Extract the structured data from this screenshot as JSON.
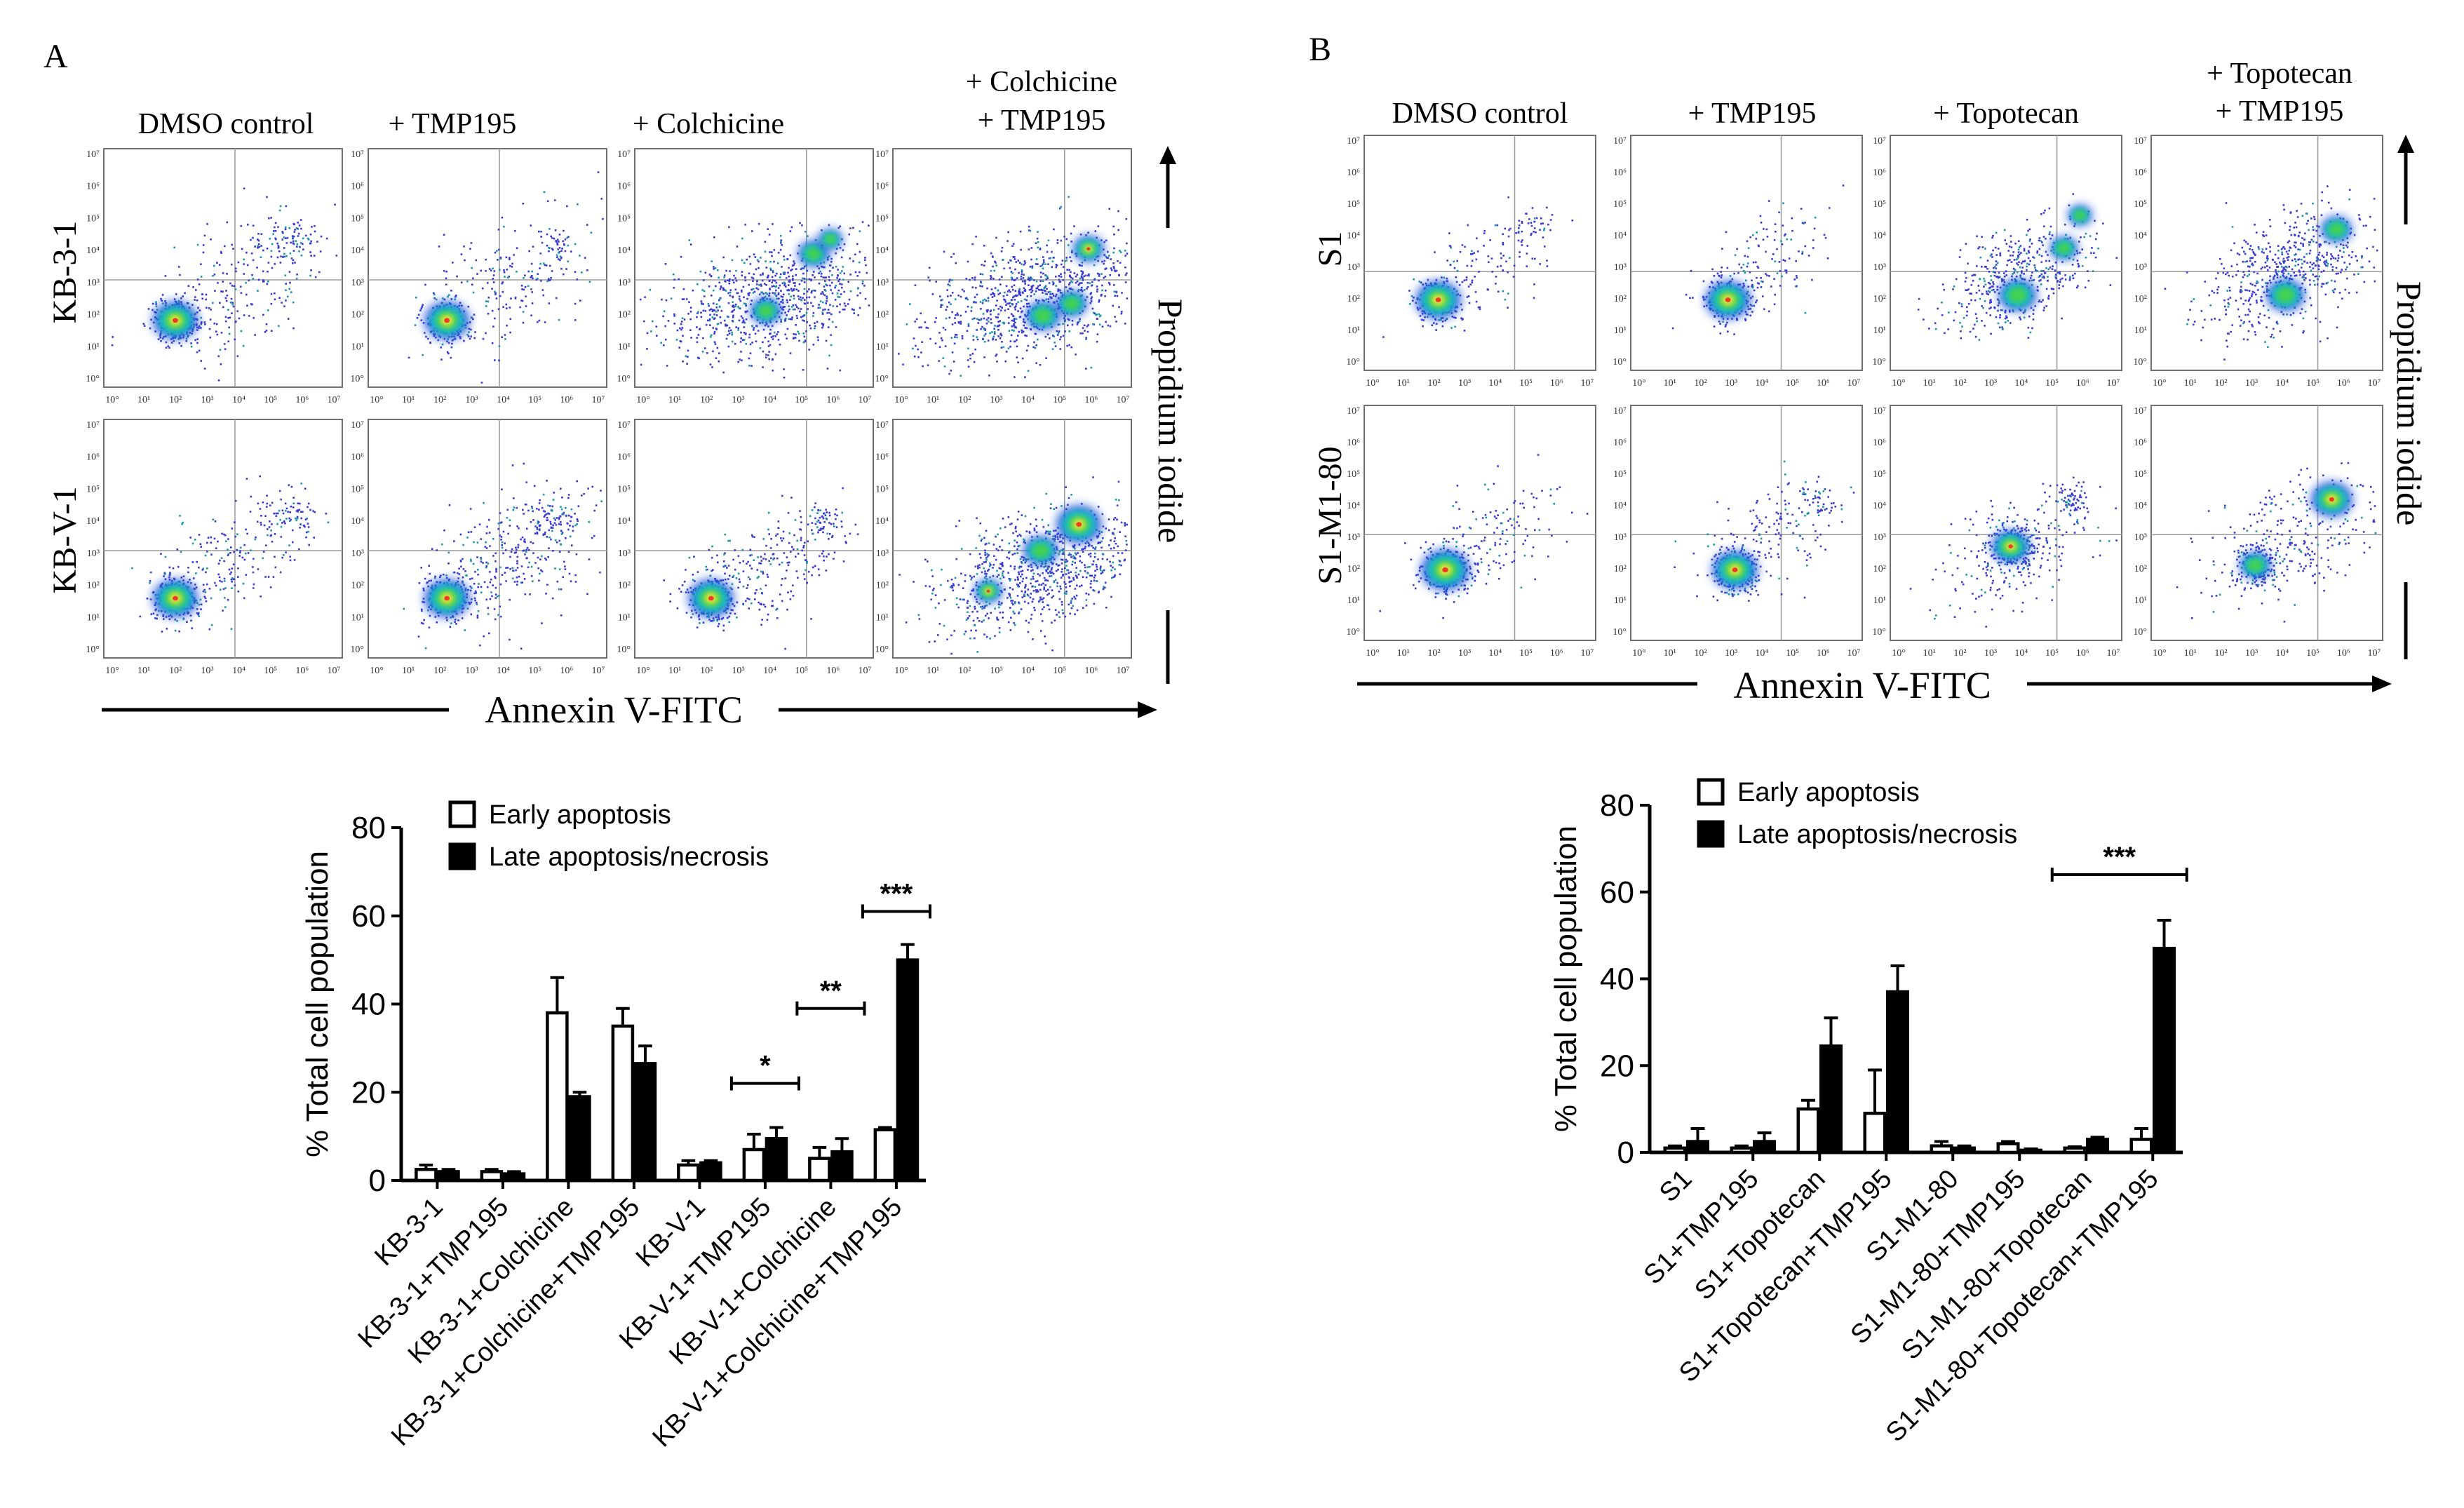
{
  "panel_a": {
    "letter": "A",
    "columns": [
      "DMSO control",
      "+ TMP195",
      "+ Colchicine"
    ],
    "column4": [
      "+ Colchicine",
      "+ TMP195"
    ],
    "rows": [
      "KB-3-1",
      "KB-V-1"
    ],
    "x_axis_label": "Annexin V-FITC",
    "y_axis_label": "Propidium iodide"
  },
  "panel_b": {
    "letter": "B",
    "columns": [
      "DMSO control",
      "+ TMP195",
      "+ Topotecan"
    ],
    "column4": [
      "+ Topotecan",
      "+ TMP195"
    ],
    "rows": [
      "S1",
      "S1-M1-80"
    ],
    "x_axis_label": "Annexin V-FITC",
    "y_axis_label": "Propidium iodide"
  },
  "flow_tick_labels": [
    "10°",
    "10¹",
    "10²",
    "10³",
    "10⁴",
    "10⁵",
    "10⁶",
    "10⁷"
  ],
  "chart_data": [
    {
      "type": "bar",
      "panel": "A",
      "ylabel": "% Total cell population",
      "ylim": [
        0,
        80
      ],
      "yticks": [
        0,
        20,
        40,
        60,
        80
      ],
      "categories": [
        "KB-3-1",
        "KB-3-1+TMP195",
        "KB-3-1+Colchicine",
        "KB-3-1+Colchicine+TMP195",
        "KB-V-1",
        "KB-V-1+TMP195",
        "KB-V-1+Colchicine",
        "KB-V-1+Colchicine+TMP195"
      ],
      "series": [
        {
          "name": "Early apoptosis",
          "values": [
            2.5,
            2,
            38,
            35,
            3.5,
            7,
            5,
            11.5
          ],
          "errors": [
            1,
            0.5,
            8,
            4,
            1,
            3.5,
            2.5,
            0.5
          ],
          "fill": "#ffffff"
        },
        {
          "name": "Late apoptosis/necrosis",
          "values": [
            2,
            1.5,
            19,
            26.5,
            4,
            9.5,
            6.5,
            50
          ],
          "errors": [
            0.5,
            0.5,
            1,
            4,
            0.5,
            2.5,
            3,
            3.5
          ],
          "fill": "#000000"
        }
      ],
      "significance": [
        {
          "label": "*",
          "from": 5,
          "to": 5,
          "y": 22
        },
        {
          "label": "**",
          "from": 6,
          "to": 6,
          "y": 39
        },
        {
          "label": "***",
          "from": 7,
          "to": 7,
          "y": 61
        }
      ]
    },
    {
      "type": "bar",
      "panel": "B",
      "ylabel": "% Total cell population",
      "ylim": [
        0,
        80
      ],
      "yticks": [
        0,
        20,
        40,
        60,
        80
      ],
      "categories": [
        "S1",
        "S1+TMP195",
        "S1+Topotecan",
        "S1+Topotecan+TMP195",
        "S1-M1-80",
        "S1-M1-80+TMP195",
        "S1-M1-80+Topotecan",
        "S1-M1-80+Topotecan+TMP195"
      ],
      "series": [
        {
          "name": "Early apoptosis",
          "values": [
            1,
            1,
            10,
            9,
            1.5,
            2,
            1,
            3
          ],
          "errors": [
            0.5,
            0.5,
            2,
            10,
            1,
            0.5,
            0.3,
            2.5
          ],
          "fill": "#ffffff"
        },
        {
          "name": "Late apoptosis/necrosis",
          "values": [
            2.5,
            2.5,
            24.5,
            37,
            1,
            0.5,
            3,
            47
          ],
          "errors": [
            3,
            2,
            6.5,
            6,
            0.5,
            0.3,
            0.5,
            6.5
          ],
          "fill": "#000000"
        }
      ],
      "significance": [
        {
          "label": "***",
          "from": 6,
          "to": 7,
          "y": 64
        }
      ]
    }
  ]
}
